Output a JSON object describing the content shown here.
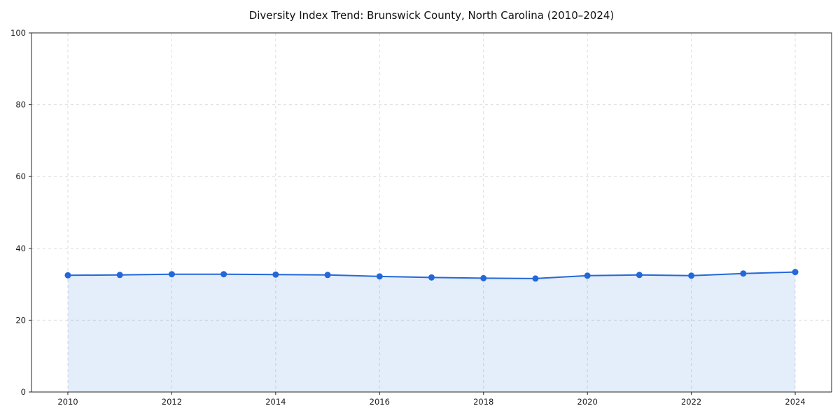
{
  "chart_data": {
    "type": "area",
    "title": "Diversity Index Trend: Brunswick County, North Carolina (2010–2024)",
    "x": [
      2010,
      2011,
      2012,
      2013,
      2014,
      2015,
      2016,
      2017,
      2018,
      2019,
      2020,
      2021,
      2022,
      2023,
      2024
    ],
    "series": [
      {
        "name": "Diversity Index",
        "values": [
          32.5,
          32.6,
          32.8,
          32.8,
          32.7,
          32.6,
          32.2,
          31.9,
          31.7,
          31.6,
          32.4,
          32.6,
          32.4,
          33.0,
          33.4
        ]
      }
    ],
    "xlabel": "",
    "ylabel": "",
    "xlim": [
      2009.3,
      2024.7
    ],
    "ylim": [
      0,
      100
    ],
    "xticks": [
      2010,
      2012,
      2014,
      2016,
      2018,
      2020,
      2022,
      2024
    ],
    "yticks": [
      0,
      20,
      40,
      60,
      80,
      100
    ],
    "grid": true,
    "grid_style": "dashed",
    "legend": "none",
    "colors": {
      "line": "#2368d8",
      "fill": "rgba(35,104,216,0.12)",
      "marker": "#2368d8",
      "grid": "#dcdcdc",
      "axis": "#262626",
      "tick_label": "#1a1a1a",
      "background": "#ffffff"
    }
  }
}
